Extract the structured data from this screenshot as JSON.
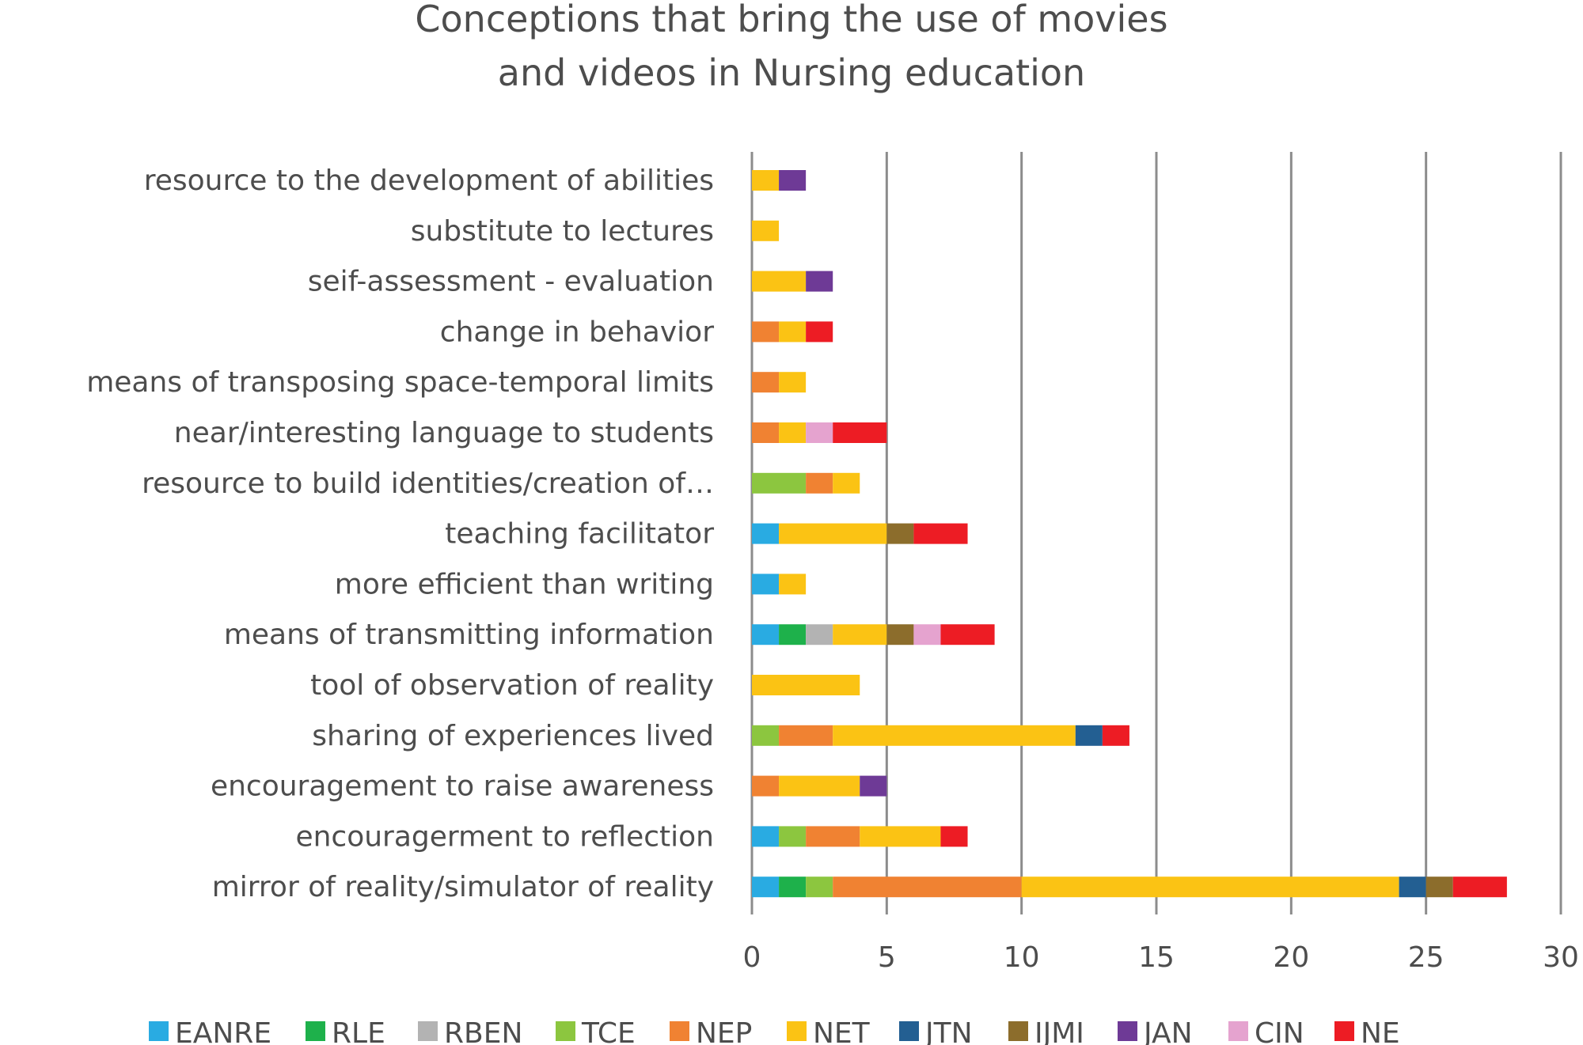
{
  "chart_data": {
    "type": "bar",
    "orientation": "horizontal",
    "stacked": true,
    "title": "Conceptions that bring the use of movies and videos in Nursing education",
    "title_lines": [
      "Conceptions that bring the use of movies",
      "and videos in Nursing education"
    ],
    "xlabel": "",
    "ylabel": "",
    "xlim": [
      0,
      30
    ],
    "xticks": [
      "0",
      "5",
      "10",
      "15",
      "20",
      "25",
      "30"
    ],
    "grid": "vertical",
    "legend_position": "bottom",
    "categories": [
      "resource to the development of abilities",
      "substitute to lectures",
      "seif-assessment - evaluation",
      "change in behavior",
      "means of transposing space-temporal limits",
      "near/interesting language to students",
      "resource to build identities/creation of…",
      "teaching facilitator",
      "more efficient than writing",
      "means of transmitting information",
      "tool of observation of reality",
      "sharing of experiences lived",
      "encouragement to raise awareness",
      "encouragerment to reflection",
      "mirror of reality/simulator of reality"
    ],
    "series": [
      {
        "name": "EANRE",
        "color": "#29abe2",
        "values": [
          0,
          0,
          0,
          0,
          0,
          0,
          0,
          1,
          1,
          1,
          0,
          0,
          0,
          1,
          1
        ]
      },
      {
        "name": "RLE",
        "color": "#1eb14b",
        "values": [
          0,
          0,
          0,
          0,
          0,
          0,
          0,
          0,
          0,
          1,
          0,
          0,
          0,
          0,
          1
        ]
      },
      {
        "name": "RBEN",
        "color": "#b3b3b3",
        "values": [
          0,
          0,
          0,
          0,
          0,
          0,
          0,
          0,
          0,
          1,
          0,
          0,
          0,
          0,
          0
        ]
      },
      {
        "name": "TCE",
        "color": "#8cc63f",
        "values": [
          0,
          0,
          0,
          0,
          0,
          0,
          2,
          0,
          0,
          0,
          0,
          1,
          0,
          1,
          1
        ]
      },
      {
        "name": "NEP",
        "color": "#f08232",
        "values": [
          0,
          0,
          0,
          1,
          1,
          1,
          1,
          0,
          0,
          0,
          0,
          2,
          1,
          2,
          7
        ]
      },
      {
        "name": "NET",
        "color": "#fbc314",
        "values": [
          1,
          1,
          2,
          1,
          1,
          1,
          1,
          4,
          1,
          2,
          4,
          9,
          3,
          3,
          14
        ]
      },
      {
        "name": "JTN",
        "color": "#235f92",
        "values": [
          0,
          0,
          0,
          0,
          0,
          0,
          0,
          0,
          0,
          0,
          0,
          1,
          0,
          0,
          1
        ]
      },
      {
        "name": "IJMI",
        "color": "#8c6d2c",
        "values": [
          0,
          0,
          0,
          0,
          0,
          0,
          0,
          1,
          0,
          1,
          0,
          0,
          0,
          0,
          1
        ]
      },
      {
        "name": "JAN",
        "color": "#6e3a96",
        "values": [
          1,
          0,
          1,
          0,
          0,
          0,
          0,
          0,
          0,
          0,
          0,
          0,
          1,
          0,
          0
        ]
      },
      {
        "name": "CIN",
        "color": "#e5a3cf",
        "values": [
          0,
          0,
          0,
          0,
          0,
          1,
          0,
          0,
          0,
          1,
          0,
          0,
          0,
          0,
          0
        ]
      },
      {
        "name": "NE",
        "color": "#ed1c24",
        "values": [
          0,
          0,
          0,
          1,
          0,
          2,
          0,
          2,
          0,
          2,
          0,
          1,
          0,
          1,
          2
        ]
      }
    ]
  }
}
